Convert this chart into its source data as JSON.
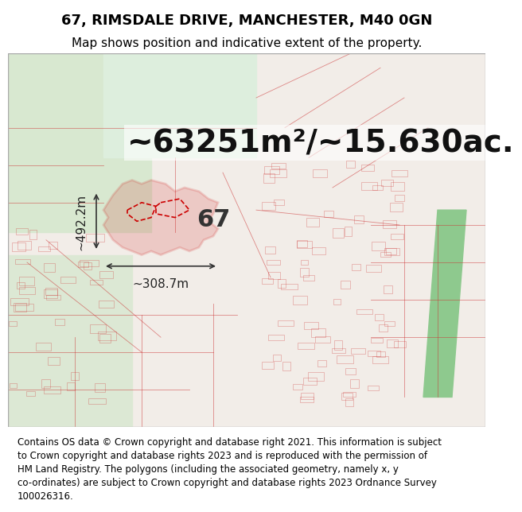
{
  "title": "67, RIMSDALE DRIVE, MANCHESTER, M40 0GN",
  "subtitle": "Map shows position and indicative extent of the property.",
  "area_text": "~63251m²/~15.630ac.",
  "label_67": "67",
  "dim_vertical": "~492.2m",
  "dim_horizontal": "~308.7m",
  "footer_lines": [
    "Contains OS data © Crown copyright and database right 2021. This information is subject",
    "to Crown copyright and database rights 2023 and is reproduced with the permission of",
    "HM Land Registry. The polygons (including the associated geometry, namely x, y",
    "co-ordinates) are subject to Crown copyright and database rights 2023 Ordnance Survey",
    "100026316."
  ],
  "title_fontsize": 13,
  "subtitle_fontsize": 11,
  "area_fontsize": 28,
  "label_fontsize": 22,
  "dim_fontsize": 11,
  "footer_fontsize": 8.5,
  "title_color": "#000000",
  "area_color": "#111111",
  "dim_color": "#222222",
  "footer_color": "#000000",
  "header_bg": "#ffffff",
  "footer_bg": "#ffffff"
}
